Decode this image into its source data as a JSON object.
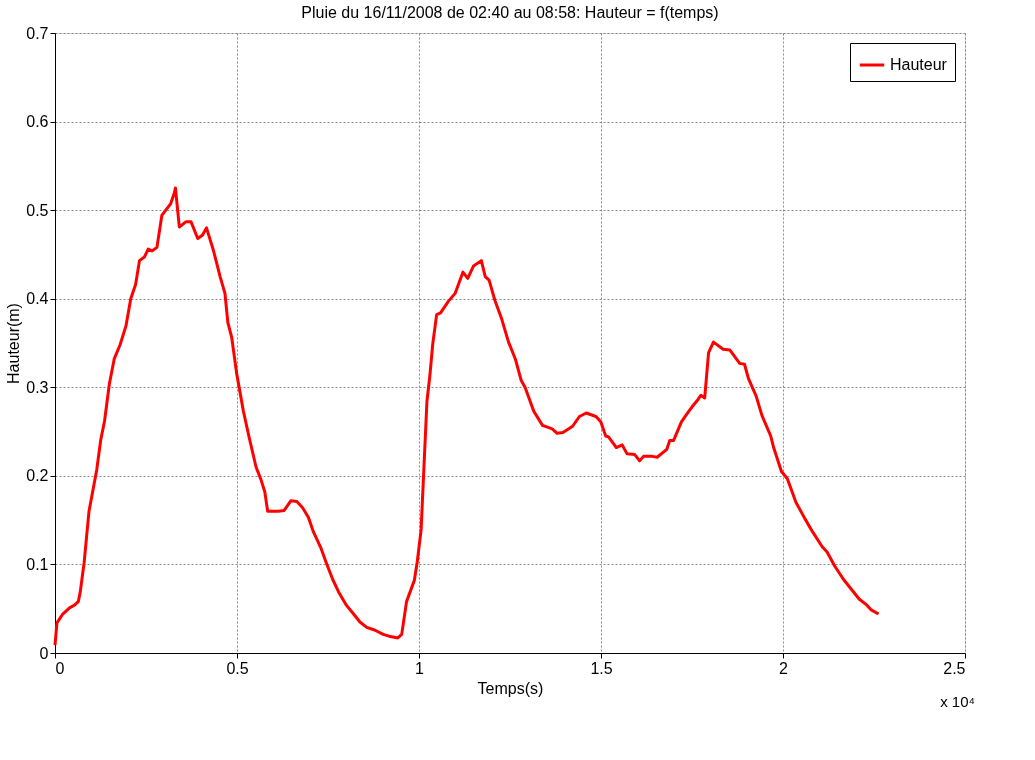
{
  "chart_data": {
    "type": "line",
    "title": "Pluie du 16/11/2008 de 02:40 au 08:58: Hauteur = f(temps)",
    "xlabel": "Temps(s)",
    "ylabel": "Hauteur(m)",
    "annotations": [
      "x 10⁴"
    ],
    "x": [
      0,
      0.0053,
      0.0213,
      0.04,
      0.0534,
      0.064,
      0.0694,
      0.08,
      0.0934,
      0.1147,
      0.1254,
      0.1361,
      0.1494,
      0.1627,
      0.1788,
      0.1948,
      0.2081,
      0.2214,
      0.2321,
      0.2455,
      0.2561,
      0.2668,
      0.2801,
      0.2935,
      0.3175,
      0.3282,
      0.3309,
      0.3415,
      0.3602,
      0.3735,
      0.3922,
      0.4055,
      0.4162,
      0.4349,
      0.4536,
      0.4669,
      0.4749,
      0.4856,
      0.4989,
      0.5176,
      0.5336,
      0.5523,
      0.5656,
      0.5763,
      0.5843,
      0.6136,
      0.6296,
      0.6483,
      0.6643,
      0.6803,
      0.6963,
      0.7097,
      0.731,
      0.747,
      0.763,
      0.7791,
      0.8004,
      0.8164,
      0.8378,
      0.8564,
      0.8778,
      0.9018,
      0.9178,
      0.9418,
      0.9525,
      0.9658,
      0.9872,
      0.9952,
      1.0058,
      1.0138,
      1.0218,
      1.0298,
      1.0378,
      1.0485,
      1.0592,
      1.0805,
      1.0992,
      1.1206,
      1.1339,
      1.1499,
      1.1713,
      1.1819,
      1.1926,
      1.2086,
      1.2273,
      1.246,
      1.2646,
      1.2806,
      1.2913,
      1.3153,
      1.3393,
      1.366,
      1.3794,
      1.3954,
      1.422,
      1.4407,
      1.4594,
      1.4861,
      1.4994,
      1.5128,
      1.5208,
      1.5421,
      1.5581,
      1.5715,
      1.5928,
      1.6061,
      1.6168,
      1.6408,
      1.6542,
      1.6808,
      1.6888,
      1.6995,
      1.7209,
      1.7395,
      1.7502,
      1.7662,
      1.7742,
      1.7849,
      1.7956,
      1.8089,
      1.8356,
      1.8543,
      1.8809,
      1.8943,
      1.9049,
      1.9263,
      1.9423,
      1.9663,
      1.9743,
      1.9957,
      2.0117,
      2.0357,
      2.0597,
      2.081,
      2.1077,
      2.1211,
      2.1424,
      2.1664,
      2.1878,
      2.2091,
      2.2305,
      2.2411,
      2.2625
    ],
    "series": [
      {
        "name": "Hauteur",
        "color": "#ff0000",
        "values": [
          0.009,
          0.034,
          0.044,
          0.051,
          0.054,
          0.058,
          0.069,
          0.102,
          0.16,
          0.207,
          0.24,
          0.262,
          0.304,
          0.332,
          0.348,
          0.369,
          0.4,
          0.416,
          0.443,
          0.447,
          0.456,
          0.454,
          0.458,
          0.494,
          0.507,
          0.52,
          0.525,
          0.481,
          0.487,
          0.487,
          0.468,
          0.472,
          0.48,
          0.455,
          0.425,
          0.406,
          0.373,
          0.356,
          0.316,
          0.273,
          0.243,
          0.21,
          0.196,
          0.182,
          0.16,
          0.16,
          0.161,
          0.172,
          0.171,
          0.164,
          0.153,
          0.137,
          0.118,
          0.1,
          0.083,
          0.069,
          0.054,
          0.046,
          0.035,
          0.029,
          0.026,
          0.021,
          0.019,
          0.017,
          0.021,
          0.058,
          0.082,
          0.103,
          0.139,
          0.212,
          0.284,
          0.313,
          0.349,
          0.382,
          0.384,
          0.397,
          0.406,
          0.43,
          0.423,
          0.437,
          0.443,
          0.425,
          0.421,
          0.398,
          0.377,
          0.351,
          0.332,
          0.308,
          0.3,
          0.273,
          0.257,
          0.253,
          0.248,
          0.249,
          0.256,
          0.267,
          0.271,
          0.267,
          0.261,
          0.245,
          0.244,
          0.232,
          0.235,
          0.225,
          0.224,
          0.217,
          0.222,
          0.222,
          0.221,
          0.23,
          0.24,
          0.24,
          0.261,
          0.272,
          0.278,
          0.286,
          0.291,
          0.288,
          0.339,
          0.351,
          0.343,
          0.342,
          0.327,
          0.326,
          0.31,
          0.29,
          0.268,
          0.245,
          0.232,
          0.205,
          0.197,
          0.17,
          0.152,
          0.137,
          0.12,
          0.114,
          0.098,
          0.083,
          0.072,
          0.061,
          0.054,
          0.049,
          0.044
        ]
      }
    ],
    "xlim": [
      0,
      2.5
    ],
    "xticks": [
      0,
      0.5,
      1,
      1.5,
      2,
      2.5
    ],
    "ylim": [
      0,
      0.7
    ],
    "yticks": [
      0,
      0.1,
      0.2,
      0.3,
      0.4,
      0.5,
      0.6,
      0.7
    ],
    "grid": true,
    "legend": "top right",
    "line_style": "solid",
    "marker": "none"
  }
}
